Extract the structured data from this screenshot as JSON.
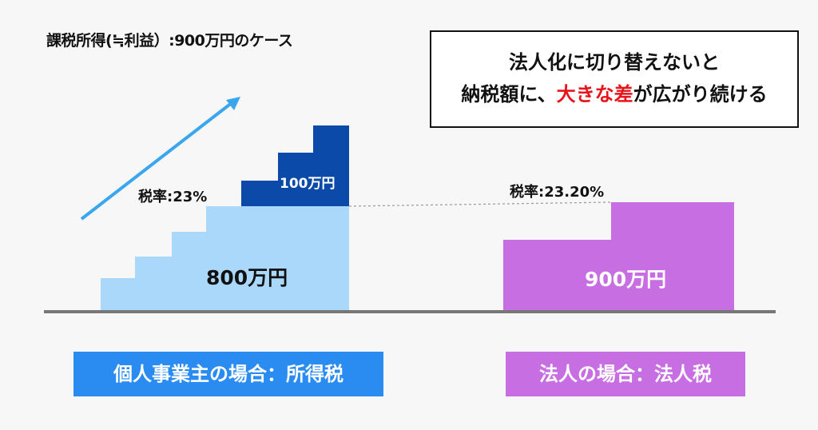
{
  "title": "課税所得(≒利益）:900万円のケース",
  "callout": {
    "line1": "法人化に切り替えないと",
    "line2_prefix": "納税額に、",
    "line2_highlight": "大きな差",
    "line2_suffix": "が広がり続ける"
  },
  "sole_proprietor": {
    "rate_label": "税率:23%",
    "base_amount": "800万円",
    "extra_amount": "100万円",
    "badge": "個人事業主の場合：所得税"
  },
  "corporation": {
    "rate_label": "税率:23.20%",
    "amount": "900万円",
    "badge": "法人の場合：法人税"
  },
  "colors": {
    "light_blue": "#a9d8fb",
    "dark_blue": "#0b4aa8",
    "arrow_blue": "#3aa6ee",
    "purple": "#c76ee3",
    "badge_blue": "#2a8cf0",
    "badge_purple": "#c76ee3",
    "baseline": "#777777"
  }
}
